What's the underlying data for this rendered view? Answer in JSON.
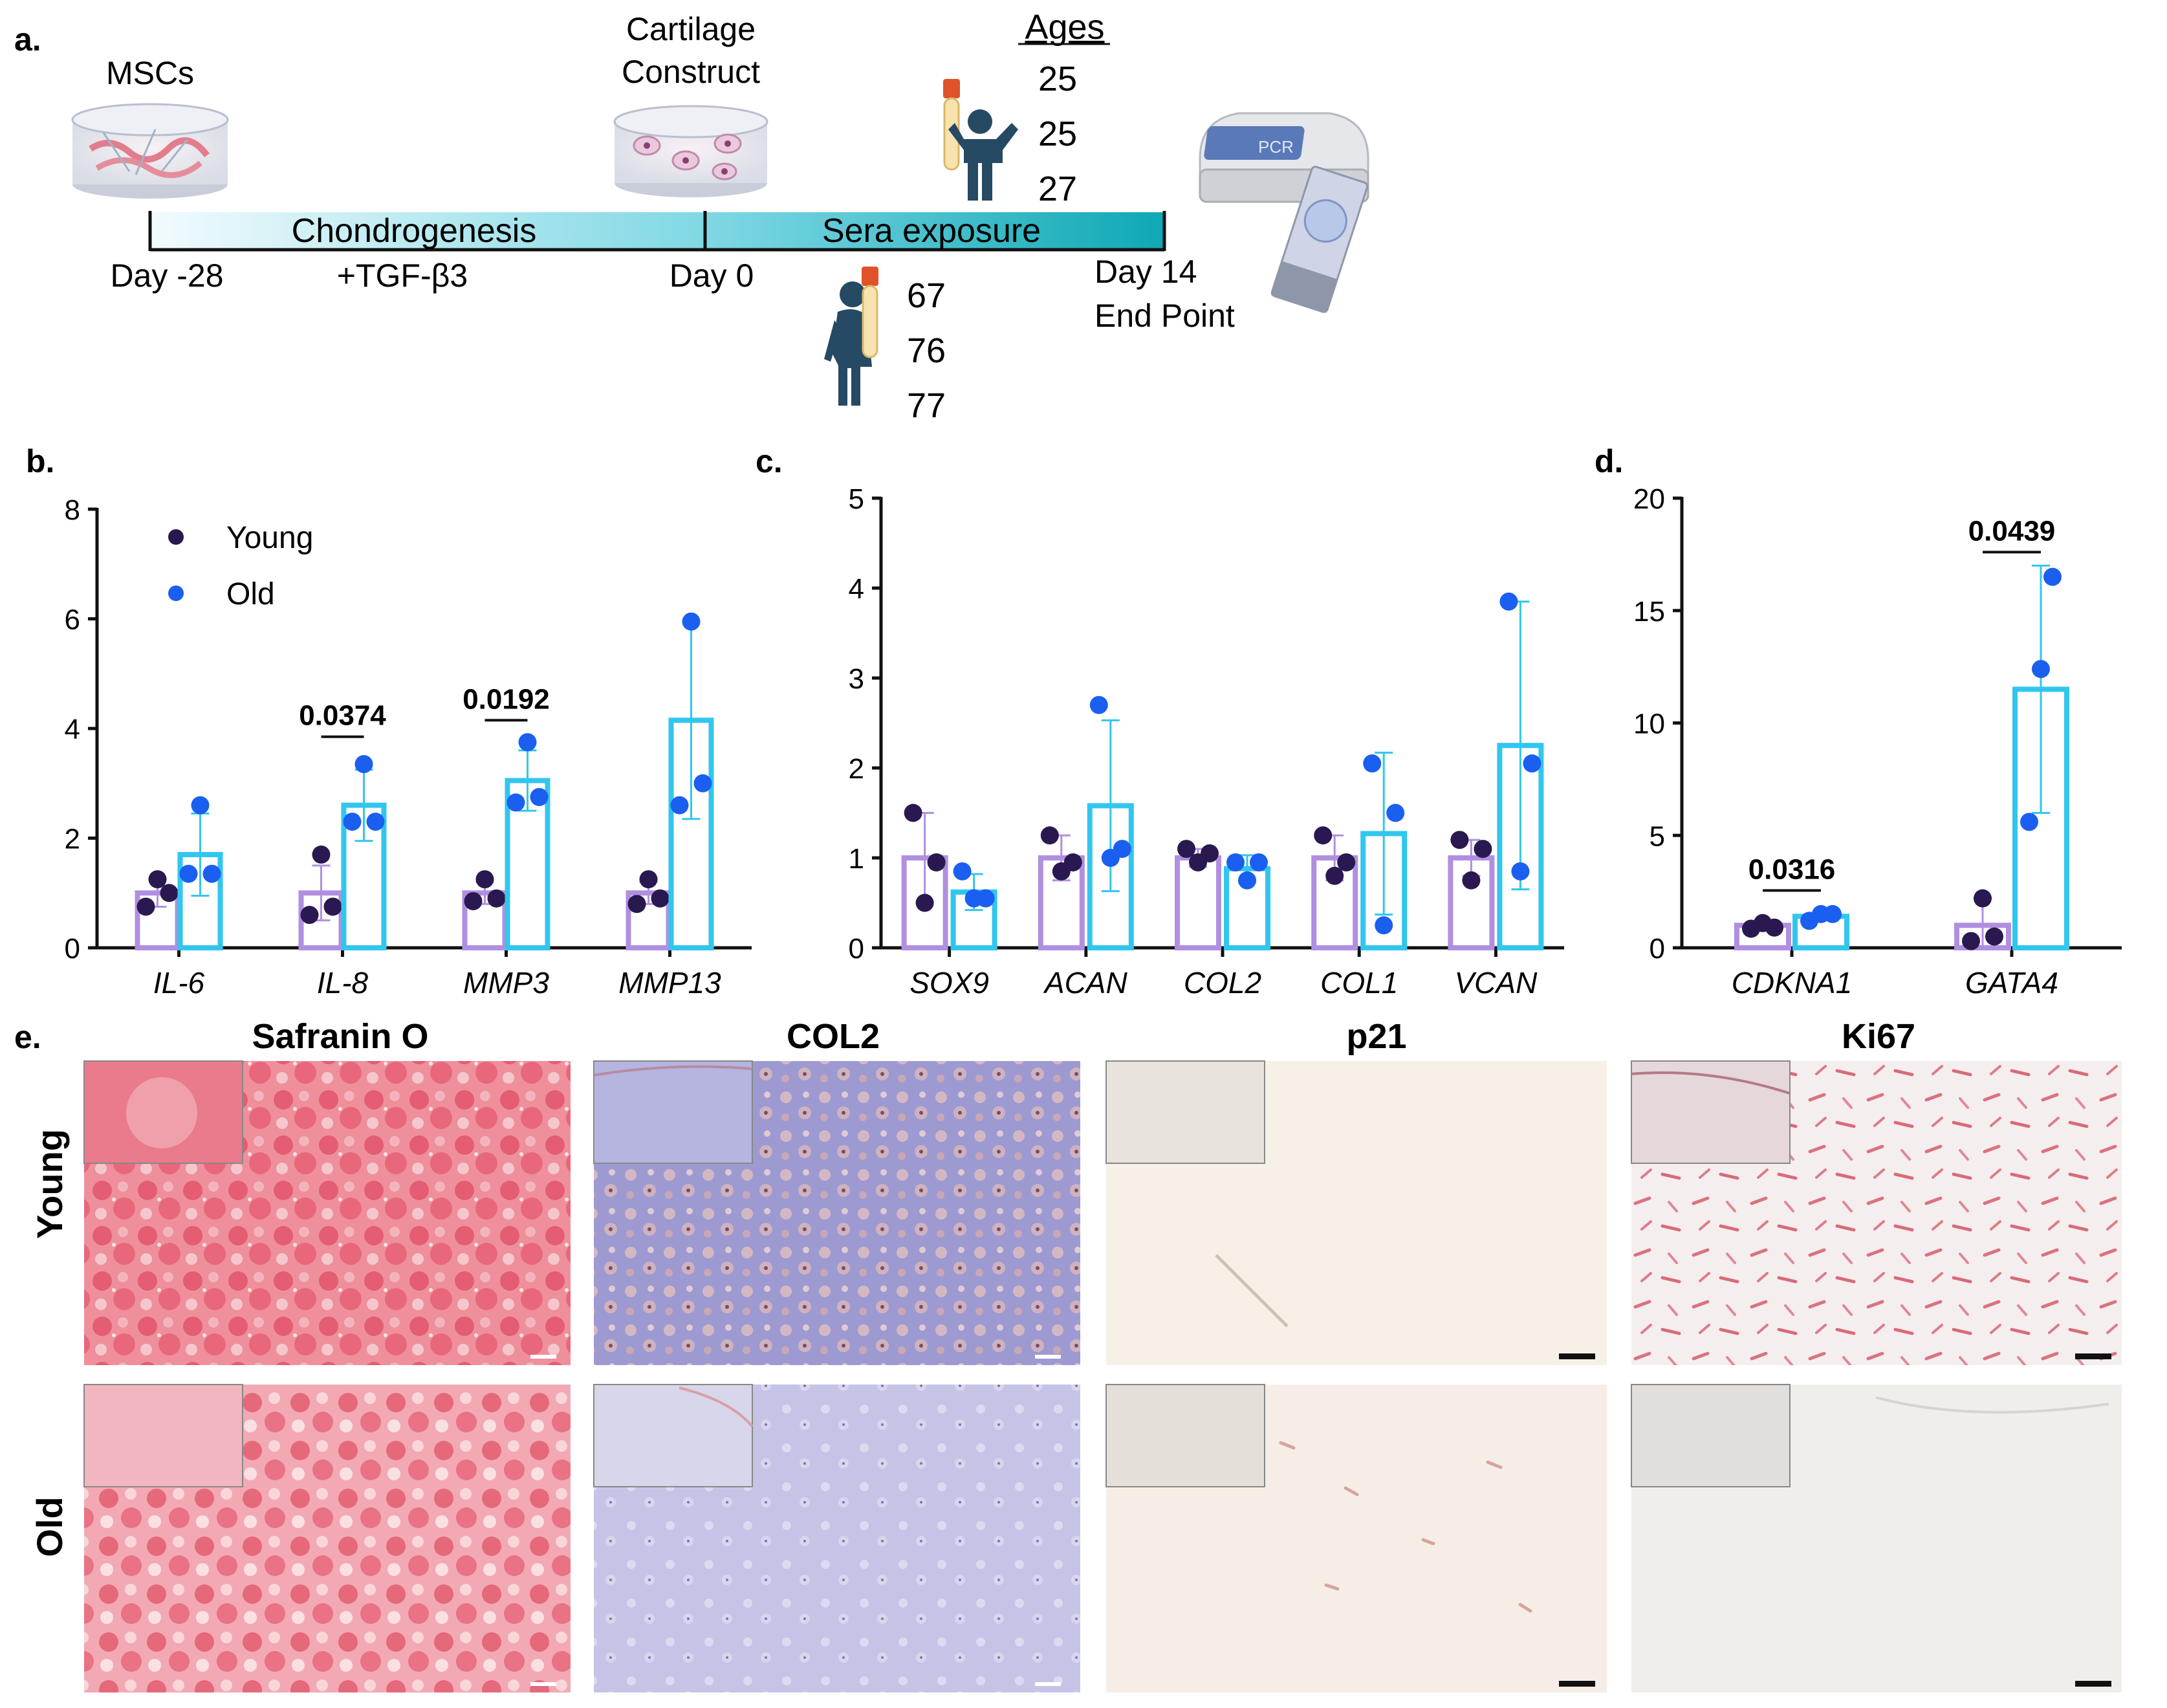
{
  "colors": {
    "young_bar": "#b18fe0",
    "young_dot": "#2a1850",
    "old_bar": "#31c6ee",
    "old_dot": "#1b5ff0",
    "axis": "#111111",
    "timeline_dark": "#15a9b6",
    "timeline_light": "#e8f7fb",
    "person": "#264a63"
  },
  "panel_a": {
    "label": "a.",
    "msc_label": "MSCs",
    "construct_label": [
      "Cartilage",
      "Construct"
    ],
    "ages_title": "Ages",
    "young_ages": [
      "25",
      "25",
      "27"
    ],
    "old_ages": [
      "67",
      "76",
      "77"
    ],
    "phase1": "Chondrogenesis",
    "phase2": "Sera exposure",
    "day_start": "Day -28",
    "treatment": "+TGF-β3",
    "day_zero": "Day 0",
    "day_end": [
      "Day 14",
      "End Point"
    ],
    "pcr_text": "PCR",
    "icons": [
      "petri-dish-icon",
      "cartilage-construct-icon",
      "blood-tube-icon",
      "child-icon",
      "elderly-person-icon",
      "pcr-machine-icon",
      "microscope-slide-icon"
    ]
  },
  "panel_b_label": "b.",
  "panel_c_label": "c.",
  "panel_d_label": "d.",
  "panel_e": {
    "label": "e.",
    "columns": [
      "Safranin O",
      "COL2",
      "p21",
      "Ki67"
    ],
    "rows": [
      "Young",
      "Old"
    ]
  },
  "chart_data": [
    {
      "panel": "b",
      "type": "bar",
      "categories": [
        "IL-6",
        "IL-8",
        "MMP3",
        "MMP13"
      ],
      "ylim": [
        0,
        8
      ],
      "yticks": [
        0,
        2,
        4,
        6,
        8
      ],
      "legend": {
        "position": "top-left",
        "entries": [
          "Young",
          "Old"
        ]
      },
      "series": [
        {
          "name": "Young",
          "values": [
            1.0,
            1.0,
            1.0,
            1.0
          ],
          "err": [
            0.25,
            0.5,
            0.2,
            0.2
          ],
          "points": [
            [
              0.75,
              1.25,
              1.0
            ],
            [
              0.6,
              1.7,
              0.75
            ],
            [
              0.85,
              1.25,
              0.9
            ],
            [
              0.8,
              1.25,
              0.9
            ]
          ]
        },
        {
          "name": "Old",
          "values": [
            1.7,
            2.6,
            3.05,
            4.15
          ],
          "err": [
            0.75,
            0.65,
            0.55,
            1.8
          ],
          "points": [
            [
              1.35,
              2.6,
              1.35
            ],
            [
              2.3,
              3.35,
              2.3
            ],
            [
              2.65,
              3.75,
              2.75
            ],
            [
              2.6,
              5.95,
              3.0
            ]
          ]
        }
      ],
      "annotations": [
        {
          "category": "IL-8",
          "text": "0.0374",
          "y": 3.85
        },
        {
          "category": "MMP3",
          "text": "0.0192",
          "y": 4.15
        }
      ]
    },
    {
      "panel": "c",
      "type": "bar",
      "categories": [
        "SOX9",
        "ACAN",
        "COL2",
        "COL1",
        "VCAN"
      ],
      "ylim": [
        0,
        5
      ],
      "yticks": [
        0,
        1,
        2,
        3,
        4,
        5
      ],
      "series": [
        {
          "name": "Young",
          "values": [
            1.0,
            1.0,
            1.0,
            1.0,
            1.0
          ],
          "err": [
            0.5,
            0.25,
            0.1,
            0.25,
            0.2
          ],
          "points": [
            [
              1.5,
              0.5,
              0.95
            ],
            [
              1.25,
              0.85,
              0.95
            ],
            [
              1.1,
              0.95,
              1.05
            ],
            [
              1.25,
              0.8,
              0.95
            ],
            [
              1.2,
              0.75,
              1.1
            ]
          ]
        },
        {
          "name": "Old",
          "values": [
            0.62,
            1.58,
            0.88,
            1.27,
            2.25
          ],
          "err": [
            0.2,
            0.95,
            0.15,
            0.9,
            1.6
          ],
          "points": [
            [
              0.85,
              0.55,
              0.55
            ],
            [
              2.7,
              1.0,
              1.1
            ],
            [
              0.95,
              0.75,
              0.95
            ],
            [
              2.05,
              0.25,
              1.5
            ],
            [
              3.85,
              0.85,
              2.05
            ]
          ]
        }
      ]
    },
    {
      "panel": "d",
      "type": "bar",
      "categories": [
        "CDKNA1",
        "GATA4"
      ],
      "ylim": [
        0,
        20
      ],
      "yticks": [
        0,
        5,
        10,
        15,
        20
      ],
      "series": [
        {
          "name": "Young",
          "values": [
            1.0,
            1.0
          ],
          "err": [
            0.15,
            1.2
          ],
          "points": [
            [
              0.85,
              1.1,
              0.9
            ],
            [
              0.3,
              2.2,
              0.5
            ]
          ]
        },
        {
          "name": "Old",
          "values": [
            1.4,
            11.5
          ],
          "err": [
            0.15,
            5.5
          ],
          "points": [
            [
              1.2,
              1.5,
              1.5
            ],
            [
              5.6,
              12.4,
              16.5
            ]
          ]
        }
      ],
      "annotations": [
        {
          "category": "CDKNA1",
          "text": "0.0316",
          "y": 2.55
        },
        {
          "category": "GATA4",
          "text": "0.0439",
          "y": 17.6
        }
      ]
    }
  ]
}
